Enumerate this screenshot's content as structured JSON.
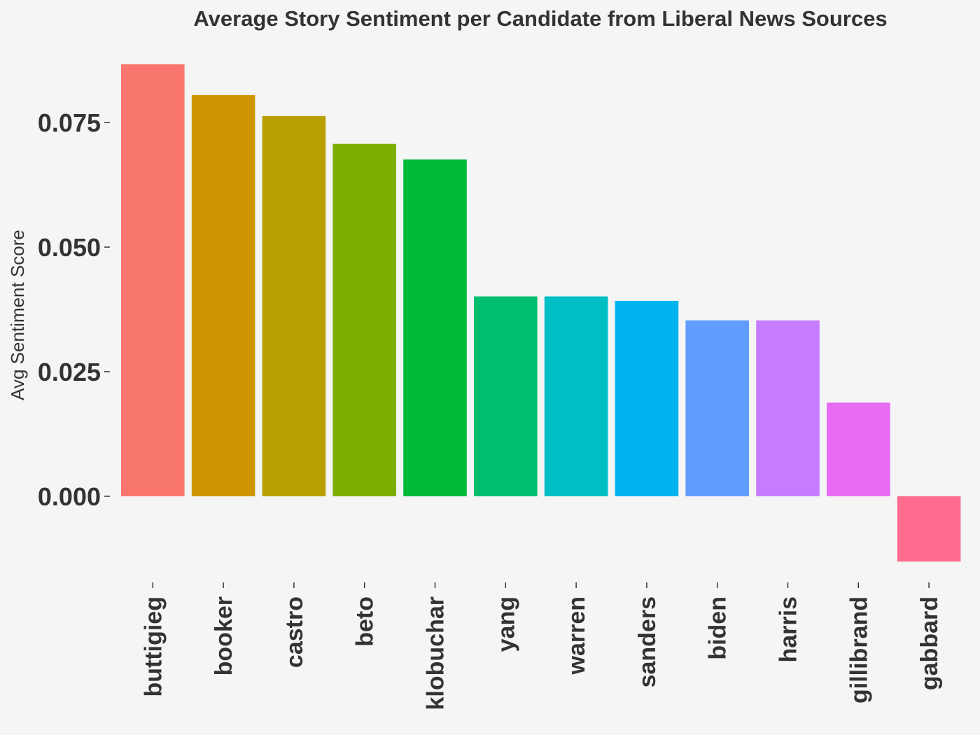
{
  "chart_data": {
    "type": "bar",
    "title": "Average Story Sentiment per Candidate from Liberal News Sources",
    "xlabel": "",
    "ylabel": "Avg Sentiment Score",
    "categories": [
      "buttigieg",
      "booker",
      "castro",
      "beto",
      "klobuchar",
      "yang",
      "warren",
      "sanders",
      "biden",
      "harris",
      "gillibrand",
      "gabbard"
    ],
    "values": [
      0.0867,
      0.0805,
      0.0763,
      0.0707,
      0.0676,
      0.0401,
      0.0401,
      0.0392,
      0.0353,
      0.0353,
      0.0188,
      -0.0131
    ],
    "colors": [
      "#F8766D",
      "#CD9600",
      "#B8A000",
      "#7CAE00",
      "#00BA38",
      "#00BE70",
      "#00BFC4",
      "#00B4F0",
      "#619CFF",
      "#C77CFF",
      "#E76BF3",
      "#FF6C90"
    ],
    "y_ticks": [
      "0.000",
      "0.025",
      "0.050",
      "0.075"
    ],
    "ylim": [
      -0.0131,
      0.0867
    ],
    "grid": false,
    "legend": "none"
  }
}
